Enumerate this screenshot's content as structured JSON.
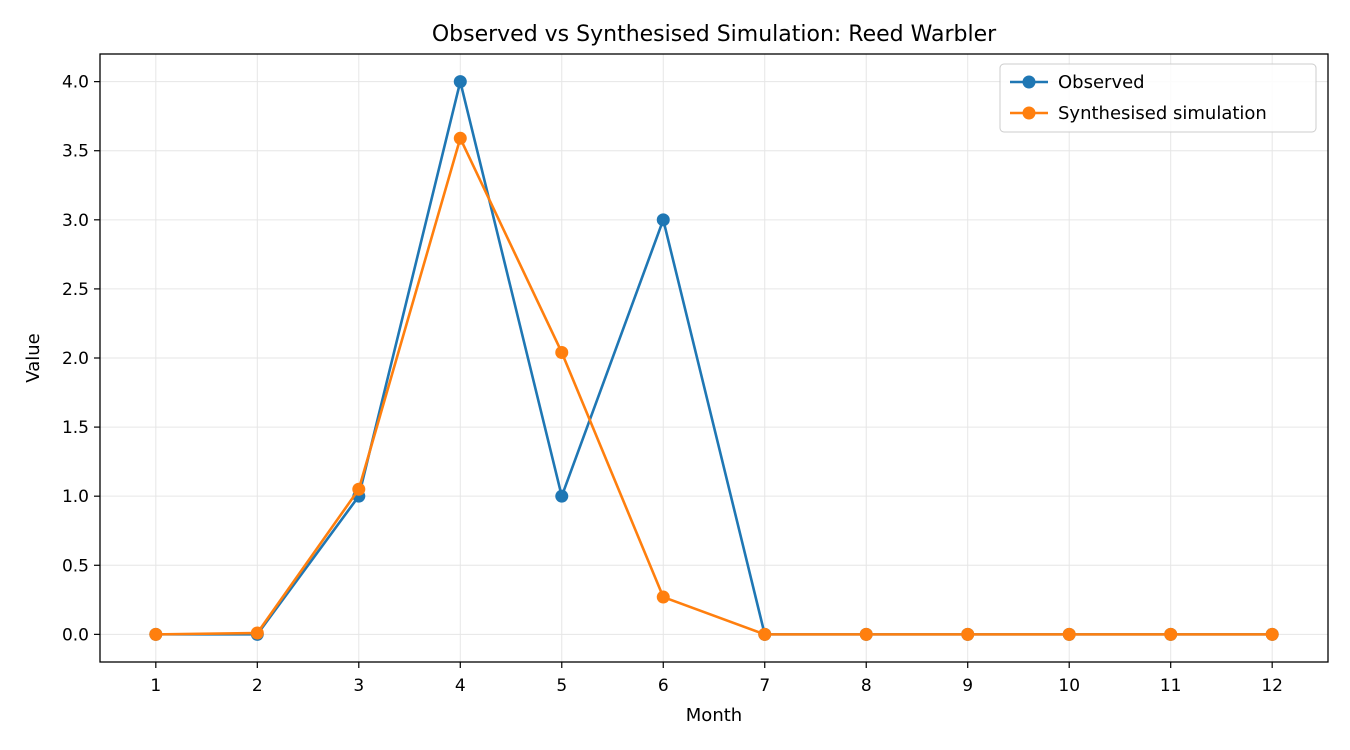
{
  "chart_data": {
    "type": "line",
    "title": "Observed vs Synthesised Simulation: Reed Warbler",
    "xlabel": "Month",
    "ylabel": "Value",
    "x": [
      1,
      2,
      3,
      4,
      5,
      6,
      7,
      8,
      9,
      10,
      11,
      12
    ],
    "xlim": [
      0.45,
      12.55
    ],
    "ylim": [
      -0.2,
      4.2
    ],
    "y_ticks": [
      "0.0",
      "0.5",
      "1.0",
      "1.5",
      "2.0",
      "2.5",
      "3.0",
      "3.5",
      "4.0"
    ],
    "grid": true,
    "legend_position": "top-right",
    "series": [
      {
        "name": "Observed",
        "color": "#1f77b4",
        "values": [
          0,
          0,
          1,
          4,
          1,
          3,
          0,
          0,
          0,
          0,
          0,
          0
        ]
      },
      {
        "name": "Synthesised simulation",
        "color": "#ff7f0e",
        "values": [
          0,
          0.01,
          1.05,
          3.59,
          2.04,
          0.27,
          0.0,
          0.0,
          0.0,
          0.0,
          0.0,
          0.0
        ]
      }
    ]
  }
}
